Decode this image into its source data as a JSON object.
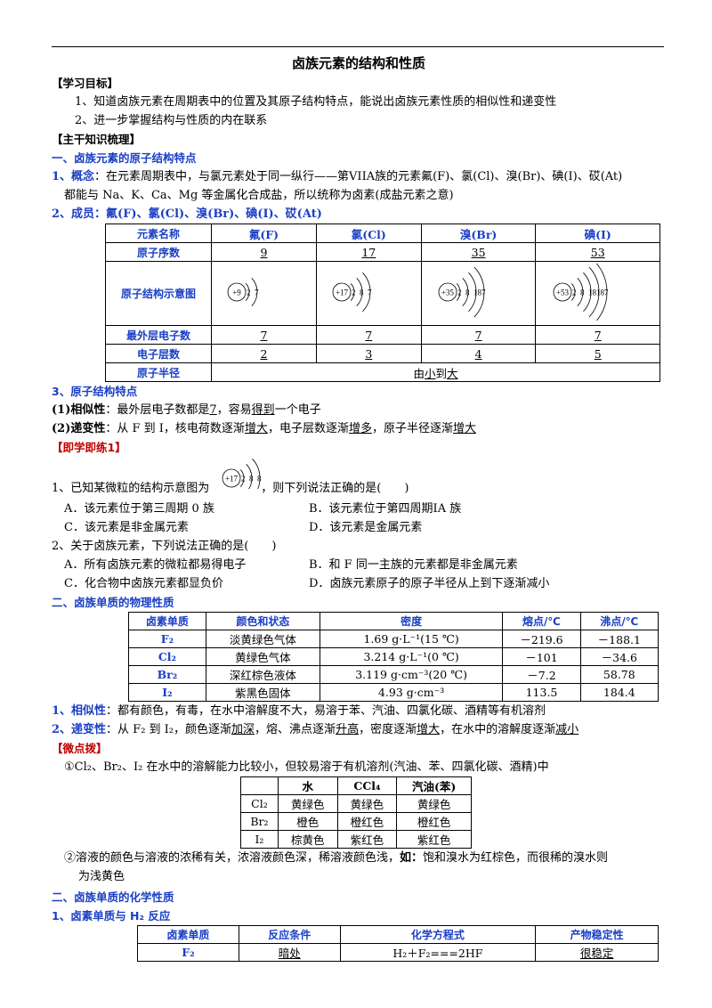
{
  "title": "卤族元素的结构和性质",
  "objectives": {
    "heading": "【学习目标】",
    "items": [
      "1、知道卤族元素在周期表中的位置及其原子结构特点，能说出卤族元素性质的相似性和递变性",
      "2、进一步掌握结构与性质的内在联系"
    ]
  },
  "summary_heading": "【主干知识梳理】",
  "sec1": {
    "heading": "一、卤族元素的原子结构特点",
    "concept_label": "1、概念",
    "concept_text": "：在元素周期表中，与氯元素处于同一纵行——第VIIA族的元素氟(F)、氯(Cl)、溴(Br)、碘(I)、砹(At)",
    "concept_text2": "都能与 Na、K、Ca、Mg 等金属化合成盐，所以统称为卤素(成盐元素之意)",
    "members_label": "2、成员：",
    "members_text": "氟(F)、氯(Cl)、溴(Br)、碘(I)、砹(At)",
    "table": {
      "headers": [
        "元素名称",
        "氟(F)",
        "氯(Cl)",
        "溴(Br)",
        "碘(I)"
      ],
      "row_labels": [
        "原子序数",
        "原子结构示意图",
        "最外层电子数",
        "电子层数",
        "原子半径"
      ],
      "atomic_numbers": [
        "9",
        "17",
        "35",
        "53"
      ],
      "structures": [
        {
          "nucleus": "+9",
          "shells": "2 7",
          "rings": 2
        },
        {
          "nucleus": "+17",
          "shells": "2 8 7",
          "rings": 3
        },
        {
          "nucleus": "+35",
          "shells": "2 8 18 7",
          "rings": 4
        },
        {
          "nucleus": "+53",
          "shells": "2 8 18 18 7",
          "rings": 5
        }
      ],
      "outer_electrons": [
        "7",
        "7",
        "7",
        "7"
      ],
      "layers": [
        "2",
        "3",
        "4",
        "5"
      ],
      "radius": {
        "pre": "由",
        "small": "小",
        "mid": "到",
        "big": "大"
      }
    },
    "features_heading": "3、原子结构特点",
    "sim_label": "(1)相似性",
    "sim_text": "：最外层电子数都是",
    "sim_num": "7",
    "sim_text2": "，容易",
    "sim_gain": "得到",
    "sim_text3": "一个电子",
    "grad_label": "(2)递变性",
    "grad_text": "：从 F 到 I，核电荷数逐渐",
    "grad_w1": "增大",
    "grad_text2": "，电子层数逐渐",
    "grad_w2": "增多",
    "grad_text3": "，原子半径逐渐",
    "grad_w3": "增大"
  },
  "practice": {
    "heading": "【即学即练1】",
    "q1_pre": "1、已知某微粒的结构示意图为",
    "q1_atom": {
      "nucleus": "+17",
      "shells": "2 8 8"
    },
    "q1_post": "，则下列说法正确的是(　　)",
    "q1_opts": [
      "A．该元素位于第三周期 0 族",
      "B．该元素位于第四周期ⅠA 族",
      "C．该元素是非金属元素",
      "D．该元素是金属元素"
    ],
    "q2": "2、关于卤族元素，下列说法正确的是(　　)",
    "q2_opts": [
      "A．所有卤族元素的微粒都易得电子",
      "B．和 F 同一主族的元素都是非金属元素",
      "C．化合物中卤族元素都显负价",
      "D．卤族元素原子的原子半径从上到下逐渐减小"
    ]
  },
  "sec2": {
    "heading": "二、卤族单质的物理性质",
    "headers": [
      "卤素单质",
      "颜色和状态",
      "密度",
      "熔点/℃",
      "沸点/℃"
    ],
    "rows": [
      [
        "F₂",
        "淡黄绿色气体",
        "1.69 g·L⁻¹(15 ℃)",
        "－219.6",
        "－188.1"
      ],
      [
        "Cl₂",
        "黄绿色气体",
        "3.214 g·L⁻¹(0 ℃)",
        "－101",
        "－34.6"
      ],
      [
        "Br₂",
        "深红棕色液体",
        "3.119 g·cm⁻³(20 ℃)",
        "－7.2",
        "58.78"
      ],
      [
        "I₂",
        "紫黑色固体",
        "4.93 g·cm⁻³",
        "113.5",
        "184.4"
      ]
    ],
    "sim_label": "1、相似性",
    "sim_text": "：都有颜色，有毒，在水中溶解度不大，易溶于苯、汽油、四氯化碳、酒精等有机溶剂",
    "grad_label": "2、递变性",
    "grad_t1": "：从 F₂ 到 I₂，颜色逐渐",
    "grad_w1": "加深",
    "grad_t2": "，熔、沸点逐渐",
    "grad_w2": "升高",
    "grad_t3": "，密度逐渐",
    "grad_w3": "增大",
    "grad_t4": "，在水中的溶解度逐渐",
    "grad_w4": "减小",
    "tip_heading": "【微点拨】",
    "tip1": "①Cl₂、Br₂、I₂ 在水中的溶解能力比较小，但较易溶于有机溶剂(汽油、苯、四氯化碳、酒精)中",
    "sol_headers": [
      "",
      "水",
      "CCl₄",
      "汽油(苯)"
    ],
    "sol_rows": [
      [
        "Cl₂",
        "黄绿色",
        "黄绿色",
        "黄绿色"
      ],
      [
        "Br₂",
        "橙色",
        "橙红色",
        "橙红色"
      ],
      [
        "I₂",
        "棕黄色",
        "紫红色",
        "紫红色"
      ]
    ],
    "tip2a": "②溶液的颜色与溶液的浓稀有关，浓溶液颜色深，稀溶液颜色浅，",
    "tip2_bold": "如：",
    "tip2b": "饱和溴水为红棕色，而很稀的溴水则",
    "tip2c": "为浅黄色"
  },
  "sec3": {
    "heading": "二、卤族单质的化学性质",
    "sub": "1、卤素单质与 H₂ 反应",
    "headers": [
      "卤素单质",
      "反应条件",
      "化学方程式",
      "产物稳定性"
    ],
    "rows": [
      [
        "F₂",
        "暗处",
        "H₂＋F₂===2HF",
        "很稳定"
      ]
    ]
  }
}
